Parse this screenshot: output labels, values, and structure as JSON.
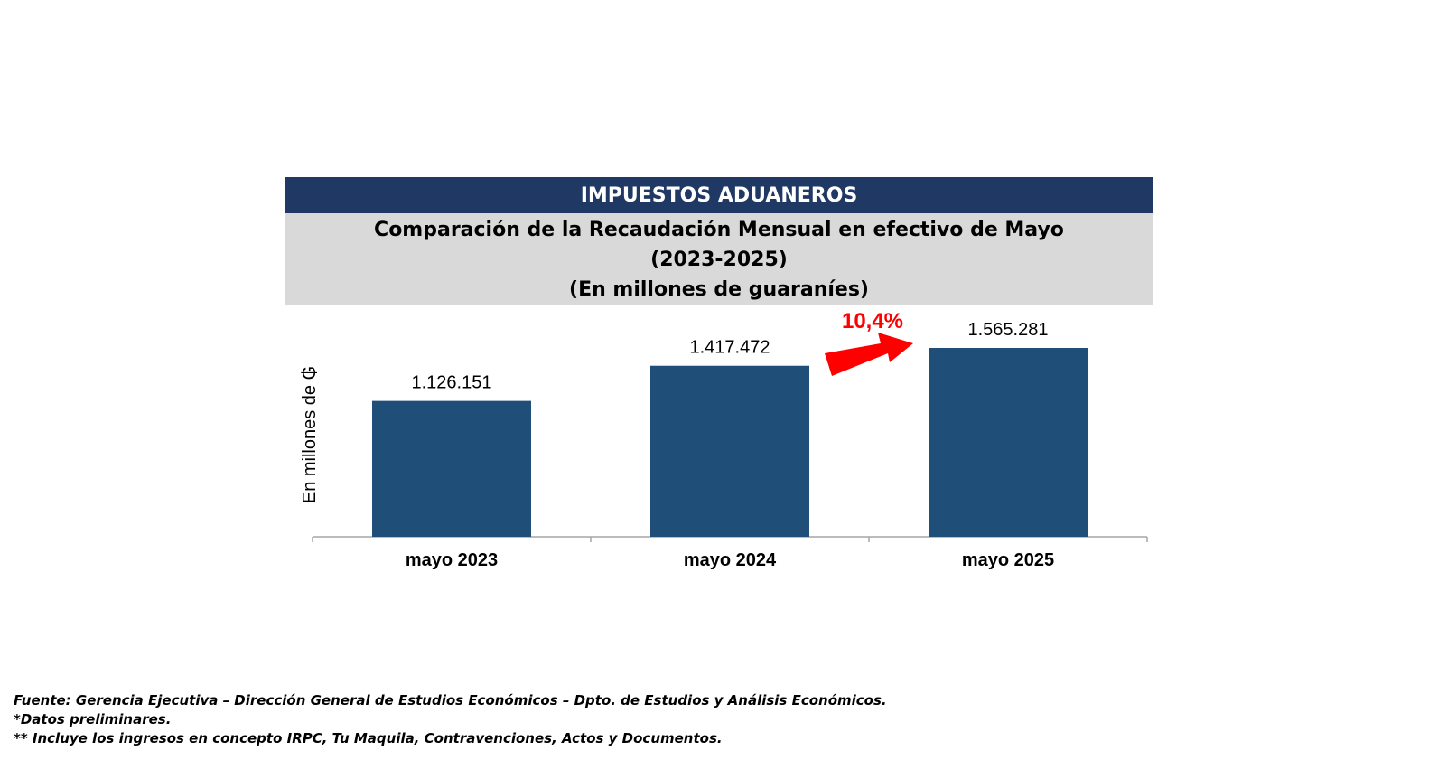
{
  "header": {
    "banner": "IMPUESTOS ADUANEROS",
    "title_line1": "Comparación de la Recaudación Mensual en efectivo de Mayo",
    "title_line2": "(2023-2025)",
    "title_line3": "(En millones de guaraníes)"
  },
  "chart_data": {
    "type": "bar",
    "categories": [
      "mayo 2023",
      "mayo 2024",
      "mayo 2025"
    ],
    "values": [
      1126151,
      1417472,
      1565281
    ],
    "data_labels": [
      "1.126.151",
      "1.417.472",
      "1.565.281"
    ],
    "ylabel": "En millones de ₲",
    "xlabel": "",
    "annotation": "10,4%",
    "grid": false,
    "colors": {
      "bar": "#1f4e79",
      "axis": "#a6a6a6",
      "annotation": "#ff0000"
    }
  },
  "footer": {
    "source": "Fuente: Gerencia Ejecutiva – Dirección General de Estudios Económicos – Dpto. de Estudios y Análisis Económicos.",
    "note1": "*Datos preliminares.",
    "note2": "** Incluye los ingresos en concepto IRPC, Tu Maquila, Contravenciones, Actos y Documentos."
  }
}
